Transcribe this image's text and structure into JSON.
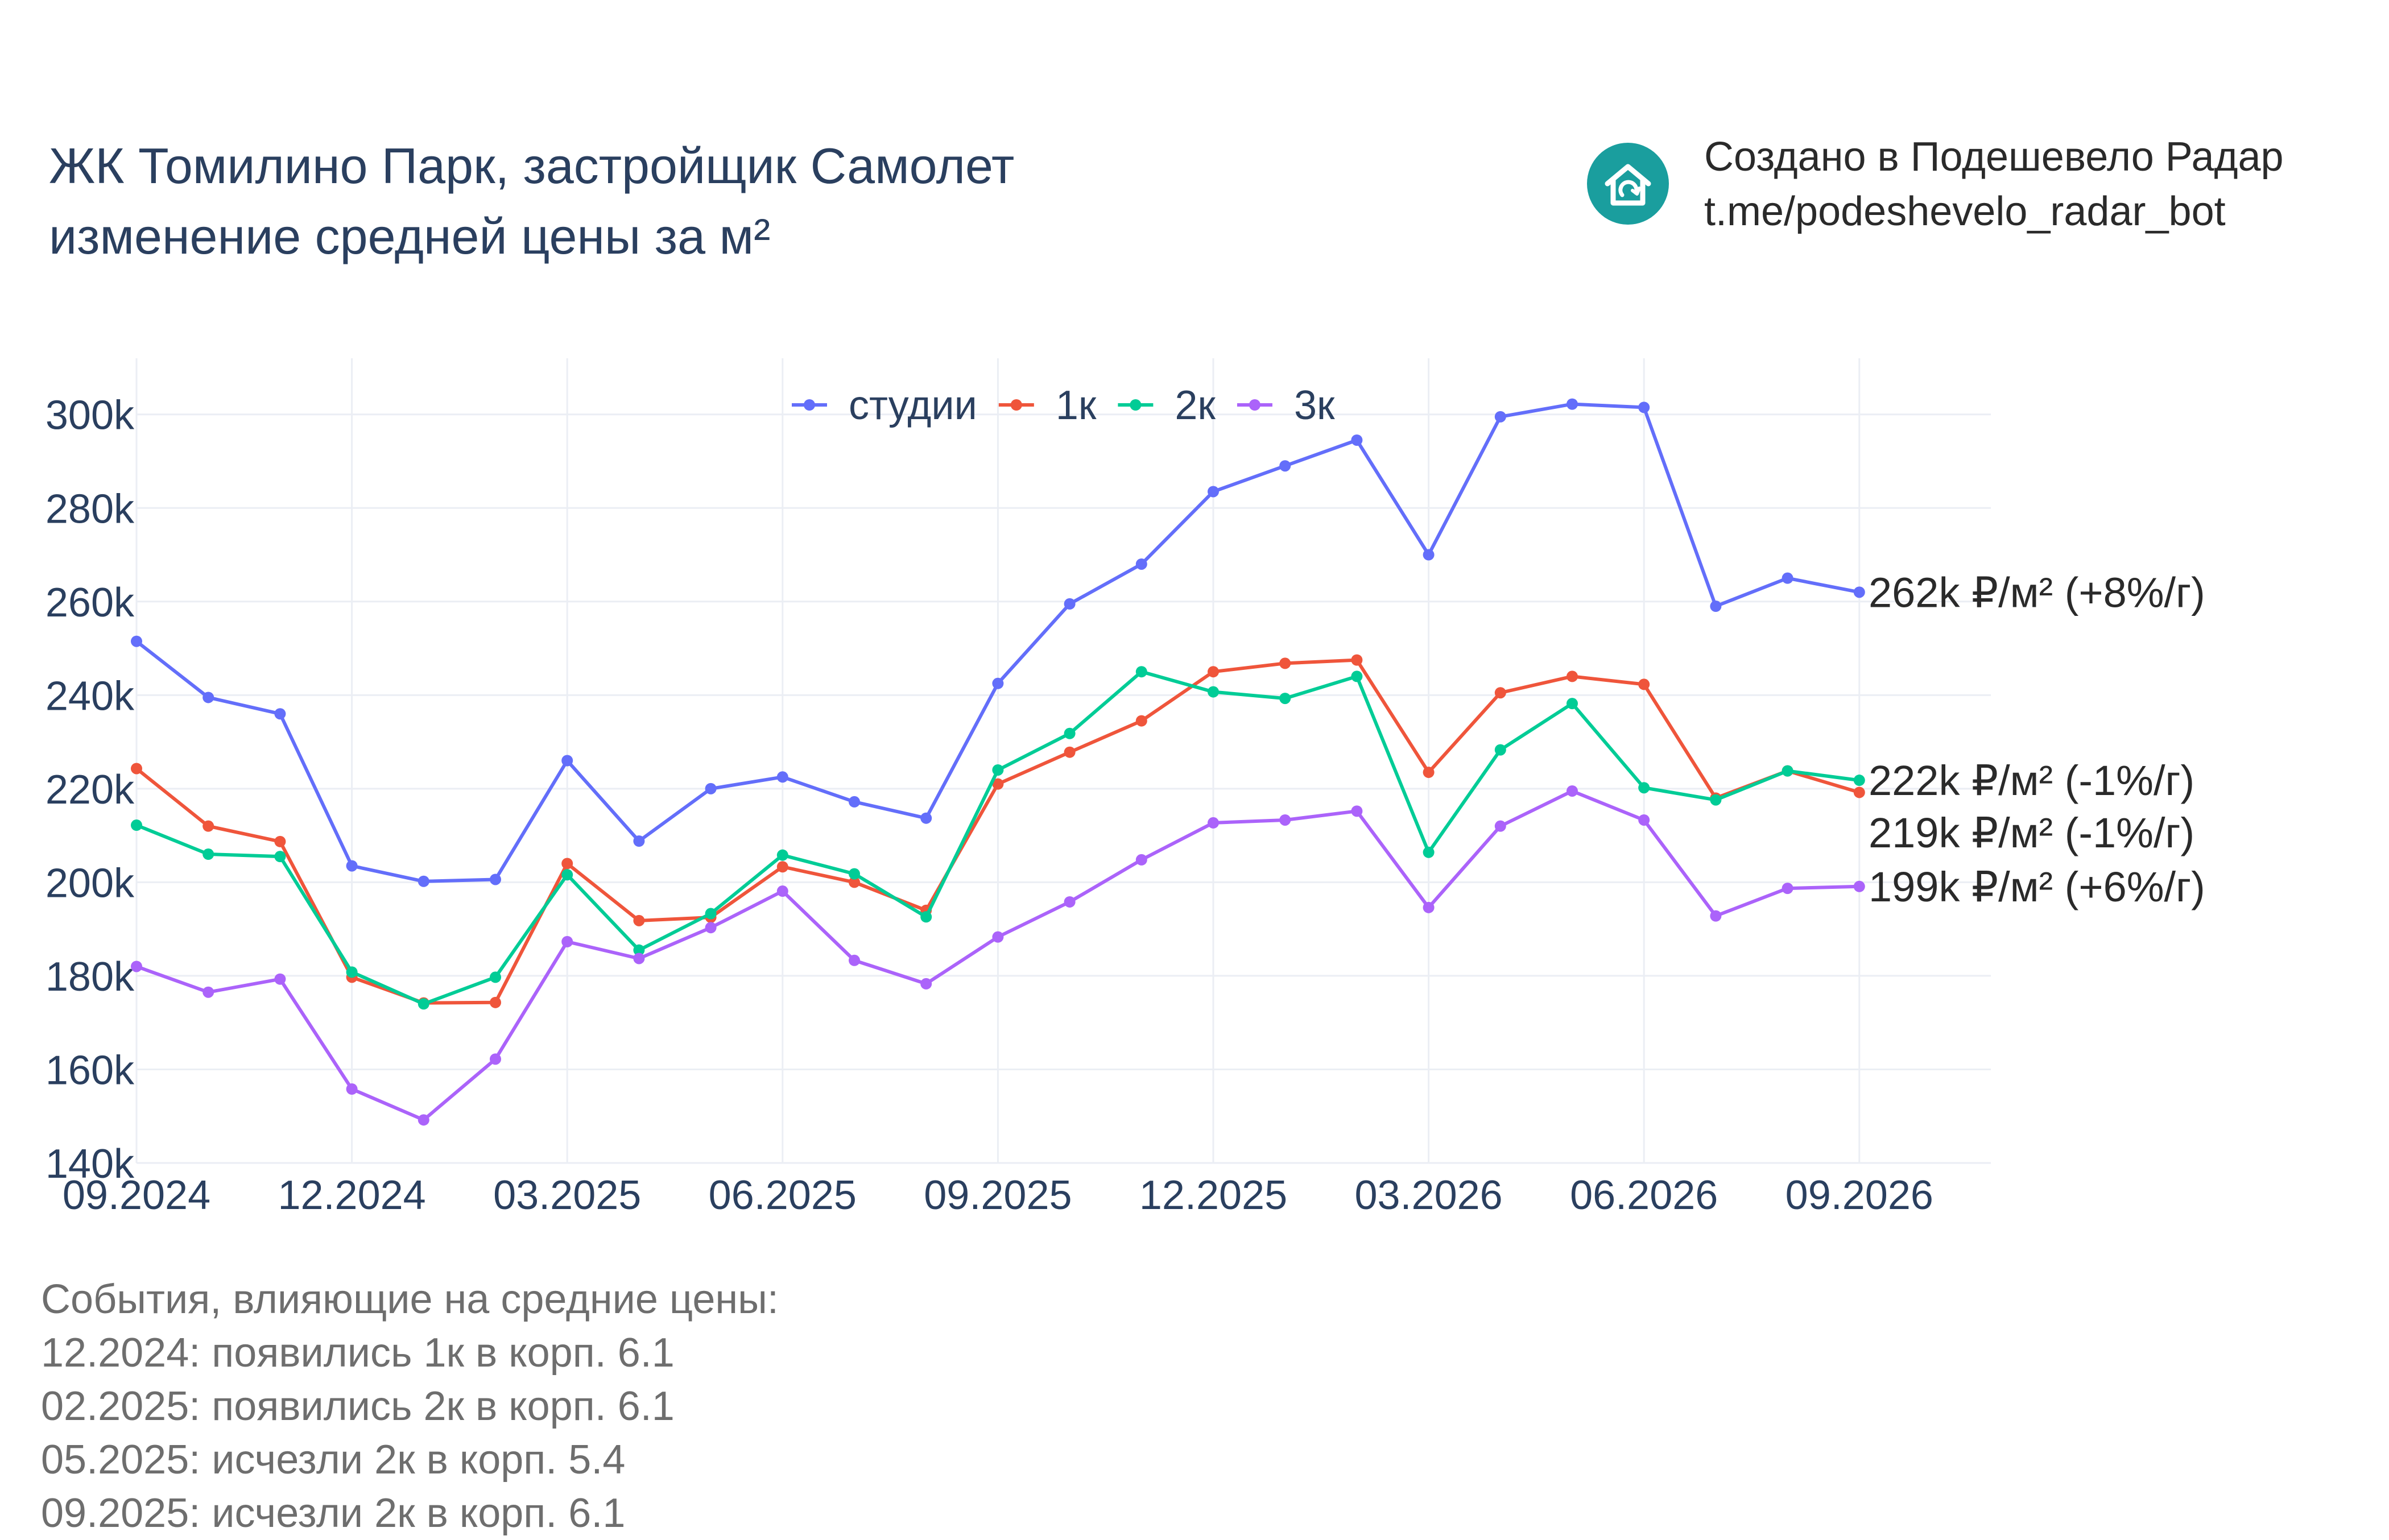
{
  "header": {
    "title_line1": "ЖК Томилино Парк, застройщик Самолет",
    "title_line2": "изменение средней цены за м²"
  },
  "brand": {
    "line1": "Создано в Подешевело Радар",
    "line2": "t.me/podeshevelo_radar_bot",
    "icon": "house-icon",
    "icon_color": "#1a9e9e"
  },
  "events": {
    "heading": "События, влияющие на средние цены:",
    "items": [
      "12.2024: появились 1к в корп. 6.1",
      "02.2025: появились 2к в корп. 6.1",
      "05.2025: исчезли 2к в корп. 5.4",
      "09.2025: исчезли 2к в корп. 6.1"
    ]
  },
  "chart_data": {
    "type": "line",
    "x": [
      "09.2024",
      "10.2024",
      "11.2024",
      "12.2024",
      "01.2025",
      "02.2025",
      "03.2025",
      "04.2025",
      "05.2025",
      "06.2025",
      "07.2025",
      "08.2025",
      "09.2025",
      "10.2025",
      "11.2025",
      "12.2025",
      "01.2026",
      "02.2026",
      "03.2026",
      "04.2026",
      "05.2026",
      "06.2026",
      "07.2026",
      "08.2026",
      "09.2026"
    ],
    "x_ticks": [
      "09.2024",
      "12.2024",
      "03.2025",
      "06.2025",
      "09.2025",
      "12.2025",
      "03.2026",
      "06.2026",
      "09.2026"
    ],
    "y_ticks": [
      "140k",
      "160k",
      "180k",
      "200k",
      "220k",
      "240k",
      "260k",
      "280k",
      "300k"
    ],
    "ylim": [
      140000,
      312000
    ],
    "grid": true,
    "legend": "top-center",
    "series": [
      {
        "name": "студии",
        "color": "#636efa",
        "values": [
          251500,
          239500,
          236000,
          203500,
          200200,
          200600,
          226000,
          208800,
          220000,
          222500,
          217200,
          213700,
          242500,
          259500,
          268000,
          283500,
          289000,
          294500,
          270000,
          299500,
          302200,
          301500,
          259000,
          265000,
          262000
        ],
        "end_label": "262k ₽/м² (+8%/г)"
      },
      {
        "name": "1к",
        "color": "#ef553b",
        "values": [
          224300,
          212000,
          208700,
          179700,
          174200,
          174300,
          204000,
          191800,
          192500,
          203300,
          200000,
          194000,
          221000,
          227800,
          234500,
          245000,
          246800,
          247500,
          223500,
          240500,
          244000,
          242300,
          218000,
          223800,
          219200
        ],
        "end_label": "219k ₽/м² (-1%/г)"
      },
      {
        "name": "2к",
        "color": "#00cc96",
        "values": [
          212200,
          206000,
          205500,
          180800,
          174000,
          179700,
          201600,
          185500,
          193300,
          205800,
          201800,
          192600,
          224000,
          231800,
          245000,
          240700,
          239300,
          244000,
          206400,
          228300,
          238200,
          220200,
          217600,
          223800,
          221800
        ],
        "end_label": "222k ₽/м² (-1%/г)"
      },
      {
        "name": "3к",
        "color": "#ab63fa",
        "values": [
          182000,
          176500,
          179300,
          155800,
          149200,
          162200,
          187300,
          183700,
          190300,
          198100,
          183300,
          178300,
          188300,
          195800,
          204800,
          212700,
          213300,
          215200,
          194600,
          212000,
          219500,
          213300,
          192800,
          198700,
          199100
        ],
        "end_label": "199k ₽/м² (+6%/г)"
      }
    ]
  }
}
